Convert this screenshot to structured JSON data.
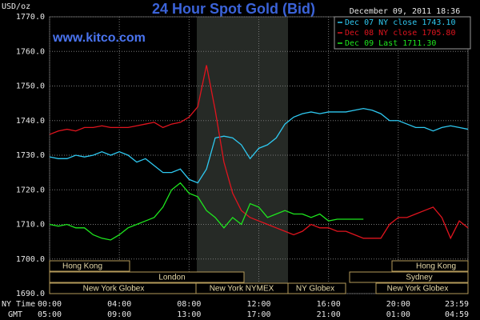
{
  "chart_data": {
    "type": "line",
    "title": "24 Hour Spot Gold (Bid)",
    "timestamp": "December 09, 2011 18:36",
    "site": "www.kitco.com",
    "y_label": "USD/oz",
    "x_label": "NY Time",
    "x2_label": "GMT",
    "x": [
      0,
      0.5,
      1,
      1.5,
      2,
      2.5,
      3,
      3.5,
      4,
      4.5,
      5,
      5.5,
      6,
      6.5,
      7,
      7.5,
      8,
      8.5,
      9,
      9.5,
      10,
      10.5,
      11,
      11.5,
      12,
      12.5,
      13,
      13.5,
      14,
      14.5,
      15,
      15.5,
      16,
      16.5,
      17,
      17.5,
      18,
      18.5,
      19,
      19.5,
      20,
      20.5,
      21,
      21.5,
      22,
      22.5,
      23,
      23.5,
      24
    ],
    "xlim": [
      0,
      24
    ],
    "xticks": [
      {
        "value": 0,
        "label": "00:00"
      },
      {
        "value": 4,
        "label": "04:00"
      },
      {
        "value": 8,
        "label": "08:00"
      },
      {
        "value": 12,
        "label": "12:00"
      },
      {
        "value": 16,
        "label": "16:00"
      },
      {
        "value": 20,
        "label": "20:00"
      },
      {
        "value": 24,
        "label": "23:59"
      }
    ],
    "x2ticks": [
      {
        "value": 0,
        "label": "05:00"
      },
      {
        "value": 4,
        "label": "09:00"
      },
      {
        "value": 8,
        "label": "13:00"
      },
      {
        "value": 12,
        "label": "17:00"
      },
      {
        "value": 16,
        "label": "21:00"
      },
      {
        "value": 20,
        "label": "01:00"
      },
      {
        "value": 24,
        "label": "04:59"
      }
    ],
    "ylim": [
      1690,
      1770
    ],
    "yticks": [
      {
        "value": 1690,
        "label": "1690.0"
      },
      {
        "value": 1700,
        "label": "1700.0"
      },
      {
        "value": 1710,
        "label": "1710.0"
      },
      {
        "value": 1720,
        "label": "1720.0"
      },
      {
        "value": 1730,
        "label": "1730.0"
      },
      {
        "value": 1740,
        "label": "1740.0"
      },
      {
        "value": 1750,
        "label": "1750.0"
      },
      {
        "value": 1760,
        "label": "1760.0"
      },
      {
        "value": 1770,
        "label": "1770.0"
      }
    ],
    "grid": true,
    "legend": "upper right",
    "series": [
      {
        "name": "Dec 07 NY close 1743.10",
        "color": "#2ec8f0",
        "values": [
          1729.5,
          1729,
          1729,
          1730,
          1729.5,
          1730,
          1731,
          1730,
          1731,
          1730,
          1728,
          1729,
          1727,
          1725,
          1725,
          1726,
          1723,
          1722,
          1726,
          1735,
          1735.5,
          1735,
          1733,
          1729,
          1732,
          1733,
          1735,
          1739,
          1741,
          1742,
          1742.5,
          1742,
          1742.5,
          1742.5,
          1742.5,
          1743,
          1743.5,
          1743,
          1742,
          1740,
          1740,
          1739,
          1738,
          1738,
          1737,
          1738,
          1738.5,
          1738,
          1737.5
        ]
      },
      {
        "name": "Dec 08 NY close 1705.80",
        "color": "#e0141e",
        "values": [
          1736,
          1737,
          1737.5,
          1737,
          1738,
          1738,
          1738.5,
          1738,
          1738,
          1738,
          1738.5,
          1739,
          1739.5,
          1738,
          1739,
          1739.5,
          1741,
          1744,
          1756,
          1743,
          1728,
          1719,
          1714,
          1712,
          1711,
          1710,
          1709,
          1708,
          1707,
          1708,
          1710,
          1709,
          1709,
          1708,
          1708,
          1707,
          1706,
          1706,
          1706,
          1710,
          1712,
          1712,
          1713,
          1714,
          1715,
          1712,
          1706,
          1711,
          1709
        ]
      },
      {
        "name": "Dec 09 Last 1711.30",
        "color": "#1ee61e",
        "values": [
          1710,
          1709.5,
          1710,
          1709,
          1709,
          1707,
          1706,
          1705.5,
          1707,
          1709,
          1710,
          1711,
          1712,
          1715,
          1720,
          1722,
          1719,
          1718,
          1714,
          1712,
          1709,
          1712,
          1710,
          1716,
          1715,
          1712,
          1713,
          1714,
          1713,
          1713,
          1712,
          1713,
          1711,
          1711.5,
          1711.5,
          1711.5,
          1711.5,
          null,
          null,
          null,
          null,
          null,
          null,
          null,
          null,
          null,
          null,
          null,
          null
        ]
      }
    ],
    "sessions": [
      "Hong Kong",
      "Hong Kong",
      "London",
      "Sydney",
      "New York Globex",
      "New York NYMEX",
      "NY Globex",
      "New York Globex"
    ]
  }
}
